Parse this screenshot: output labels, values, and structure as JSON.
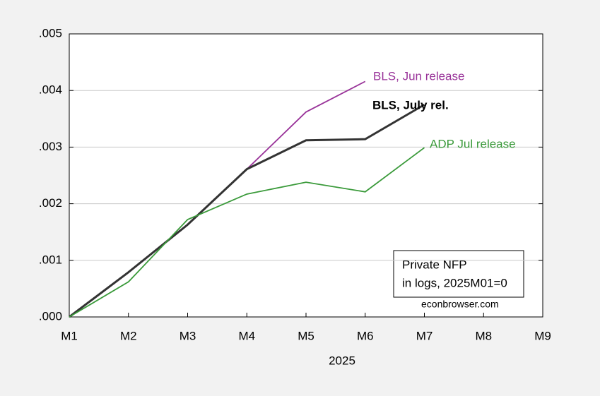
{
  "chart_data": {
    "type": "line",
    "categories": [
      "M1",
      "M2",
      "M3",
      "M4",
      "M5",
      "M6",
      "M7",
      "M8",
      "M9"
    ],
    "xlabel": "2025",
    "ylim": [
      0,
      0.005
    ],
    "yticks": [
      {
        "value": 0,
        "label": ".000"
      },
      {
        "value": 0.001,
        "label": ".001"
      },
      {
        "value": 0.002,
        "label": ".002"
      },
      {
        "value": 0.003,
        "label": ".003"
      },
      {
        "value": 0.004,
        "label": ".004"
      },
      {
        "value": 0.005,
        "label": ".005"
      }
    ],
    "grid": true,
    "series": [
      {
        "name": "BLS, Jun release",
        "color": "#993399",
        "values": [
          0,
          0.00079,
          0.00163,
          0.00261,
          0.00362,
          0.00416,
          null,
          null,
          null
        ]
      },
      {
        "name": "BLS, July rel.",
        "color": "#333333",
        "values": [
          0,
          0.00079,
          0.00163,
          0.00261,
          0.00312,
          0.00314,
          0.00375,
          null,
          null
        ]
      },
      {
        "name": "ADP Jul release",
        "color": "#3a9a3a",
        "values": [
          0,
          0.00062,
          0.00172,
          0.00217,
          0.00238,
          0.00221,
          0.00299,
          null,
          null
        ]
      }
    ],
    "annotation": [
      "Private NFP",
      "in logs, 2025M01=0"
    ],
    "source": "econbrowser.com"
  }
}
